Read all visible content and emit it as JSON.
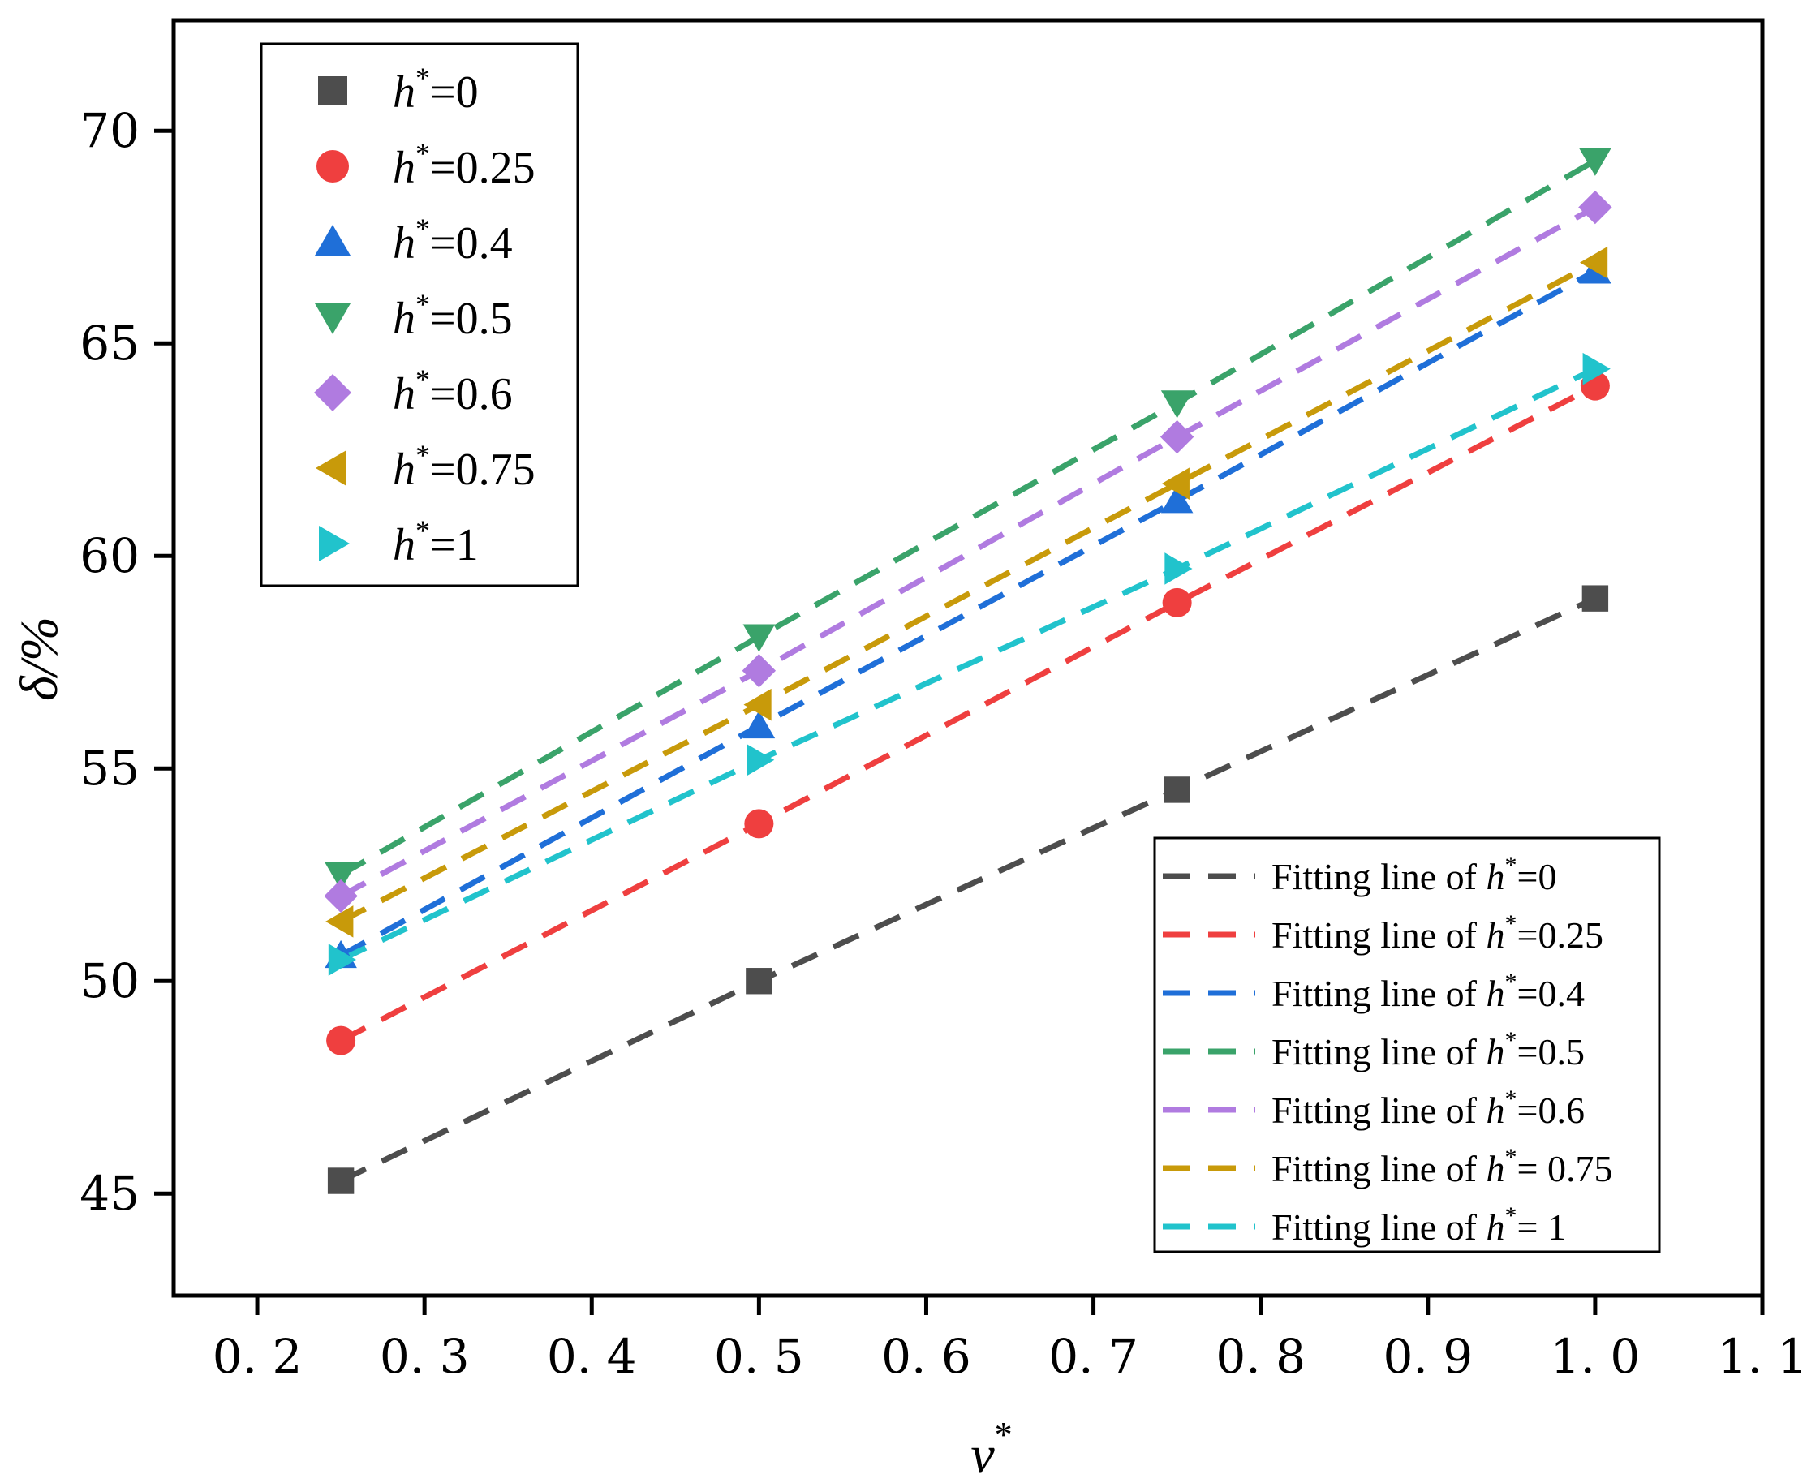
{
  "chart_data": {
    "type": "scatter",
    "xlabel": "v",
    "xlabel_sup": "*",
    "ylabel": "δ/%",
    "xlim": [
      0.15,
      1.1
    ],
    "ylim": [
      42.6,
      72.6
    ],
    "x_ticks": [
      0.2,
      0.3,
      0.4,
      0.5,
      0.6,
      0.7,
      0.8,
      0.9,
      1.0,
      1.1
    ],
    "x_tick_labels": [
      "0. 2",
      "0. 3",
      "0. 4",
      "0. 5",
      "0. 6",
      "0. 7",
      "0. 8",
      "0. 9",
      "1. 0",
      "1. 1"
    ],
    "y_ticks": [
      45,
      50,
      55,
      60,
      65,
      70
    ],
    "y_tick_labels": [
      "45",
      "50",
      "55",
      "60",
      "65",
      "70"
    ],
    "x": [
      0.25,
      0.5,
      0.75,
      1.0
    ],
    "legend_var": "h",
    "legend_sup": "*",
    "fit_prefix": "Fitting line of ",
    "series": [
      {
        "name": "h*=0",
        "value_label": "=0",
        "fit_value_label": "=0",
        "marker": "square",
        "color": "#4d4d4d",
        "values": [
          45.3,
          50.0,
          54.5,
          59.0
        ],
        "fit": [
          45.3,
          50.0,
          54.5,
          59.0
        ]
      },
      {
        "name": "h*=0.25",
        "value_label": "=0.25",
        "fit_value_label": "=0.25",
        "marker": "circle",
        "color": "#ef3f3f",
        "values": [
          48.6,
          53.7,
          58.9,
          64.0
        ],
        "fit": [
          48.6,
          53.7,
          58.9,
          64.0
        ]
      },
      {
        "name": "h*=0.4",
        "value_label": "=0.4",
        "fit_value_label": "=0.4",
        "marker": "triangle-up",
        "color": "#1f6fd8",
        "values": [
          50.6,
          56.0,
          61.3,
          66.7
        ],
        "fit": [
          50.6,
          56.0,
          61.3,
          66.7
        ]
      },
      {
        "name": "h*=0.5",
        "value_label": "=0.5",
        "fit_value_label": "=0.5",
        "marker": "triangle-down",
        "color": "#3aa36a",
        "values": [
          52.5,
          58.1,
          63.6,
          69.3
        ],
        "fit": [
          52.5,
          58.1,
          63.6,
          69.3
        ]
      },
      {
        "name": "h*=0.6",
        "value_label": "=0.6",
        "fit_value_label": "=0.6",
        "marker": "diamond",
        "color": "#b07be0",
        "values": [
          52.0,
          57.3,
          62.8,
          68.2
        ],
        "fit": [
          52.0,
          57.3,
          62.8,
          68.2
        ]
      },
      {
        "name": "h*=0.75",
        "value_label": "=0.75",
        "fit_value_label": "= 0.75",
        "marker": "triangle-left",
        "color": "#c89a0a",
        "values": [
          51.4,
          56.5,
          61.7,
          66.9
        ],
        "fit": [
          51.4,
          56.5,
          61.7,
          66.9
        ]
      },
      {
        "name": "h*=1",
        "value_label": "=1",
        "fit_value_label": "= 1",
        "marker": "triangle-right",
        "color": "#21c3cc",
        "values": [
          50.5,
          55.2,
          59.7,
          64.4
        ],
        "fit": [
          50.5,
          55.2,
          59.7,
          64.4
        ]
      }
    ],
    "grid": false,
    "legend_markers_position": "top-left",
    "legend_fits_position": "bottom-right"
  }
}
